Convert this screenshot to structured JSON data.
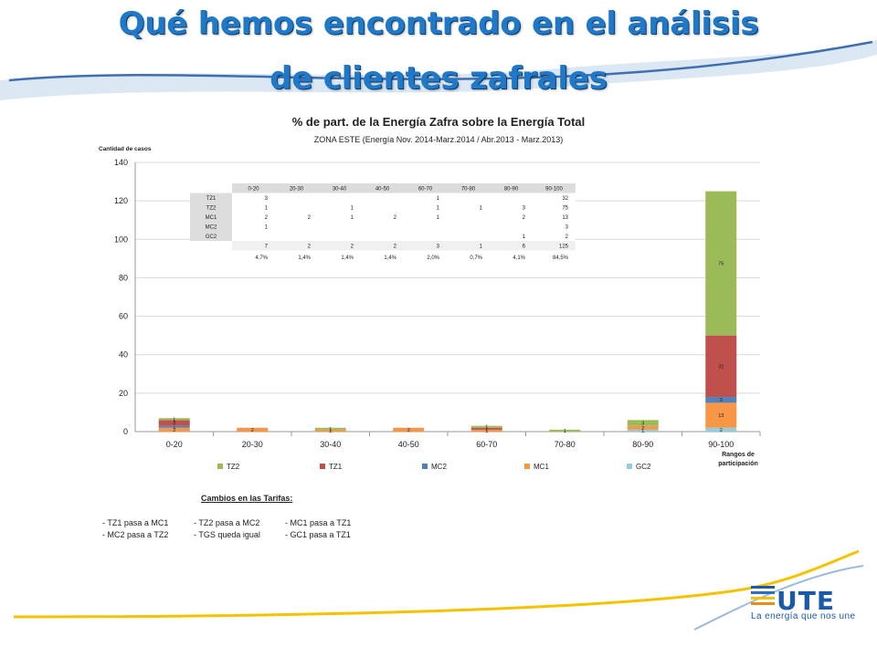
{
  "slide": {
    "title_line1": "Qué hemos encontrado en el análisis",
    "title_line2": "de clientes zafrales"
  },
  "colors": {
    "title_blue": "#1f78c8",
    "TZ2": "#9bbb59",
    "TZ1": "#c0504d",
    "MC2": "#4f81bd",
    "MC1": "#f79646",
    "GC2": "#93cddd"
  },
  "chart_data": {
    "type": "bar",
    "stacked": true,
    "title": "% de part. de la Energía Zafra sobre la Energía Total",
    "subtitle": "ZONA ESTE (Energía Nov. 2014-Marz.2014  / Abr.2013 - Marz.2013)",
    "ylabel": "Cantidad de casos",
    "xlabel": "Rangos de participación",
    "ylim": [
      0,
      140
    ],
    "yticks": [
      0,
      20,
      40,
      60,
      80,
      100,
      120,
      140
    ],
    "categories": [
      "0-20",
      "20-30",
      "30-40",
      "40-50",
      "60-70",
      "70-80",
      "80-90",
      "90-100"
    ],
    "series": [
      {
        "name": "GC2",
        "values": [
          0,
          0,
          0,
          0,
          0,
          0,
          1,
          2
        ]
      },
      {
        "name": "MC1",
        "values": [
          2,
          2,
          1,
          2,
          1,
          0,
          2,
          13
        ]
      },
      {
        "name": "MC2",
        "values": [
          1,
          0,
          0,
          0,
          0,
          0,
          0,
          3
        ]
      },
      {
        "name": "TZ1",
        "values": [
          3,
          0,
          0,
          0,
          1,
          0,
          0,
          32
        ]
      },
      {
        "name": "TZ2",
        "values": [
          1,
          0,
          1,
          0,
          1,
          1,
          3,
          75
        ]
      }
    ],
    "legend_order": [
      "TZ2",
      "TZ1",
      "MC2",
      "MC1",
      "GC2"
    ],
    "legend": "bottom",
    "grid": true,
    "table": {
      "header": [
        "0-20",
        "20-30",
        "30-40",
        "40-50",
        "60-70",
        "70-80",
        "80-90",
        "90-100"
      ],
      "rows": [
        {
          "label": "TZ1",
          "cells": [
            "3",
            "",
            "",
            "",
            "1",
            "",
            "",
            "32"
          ]
        },
        {
          "label": "TZ2",
          "cells": [
            "1",
            "",
            "1",
            "",
            "1",
            "1",
            "3",
            "75"
          ]
        },
        {
          "label": "MC1",
          "cells": [
            "2",
            "2",
            "1",
            "2",
            "1",
            "",
            "2",
            "13"
          ]
        },
        {
          "label": "MC2",
          "cells": [
            "1",
            "",
            "",
            "",
            "",
            "",
            "",
            "3"
          ]
        },
        {
          "label": "GC2",
          "cells": [
            "",
            "",
            "",
            "",
            "",
            "",
            "1",
            "2"
          ]
        }
      ],
      "totals": [
        "7",
        "2",
        "2",
        "2",
        "3",
        "1",
        "6",
        "125"
      ],
      "percents": [
        "4,7%",
        "1,4%",
        "1,4%",
        "1,4%",
        "2,0%",
        "0,7%",
        "4,1%",
        "84,5%"
      ]
    }
  },
  "changes": {
    "title": "Cambios en las Tarifas:",
    "rows": [
      [
        "- TZ1 pasa a MC1",
        "- TZ2 pasa a MC2",
        "- MC1 pasa a TZ1"
      ],
      [
        "- MC2 pasa a TZ2",
        "- TGS queda igual",
        "- GC1 pasa a TZ1"
      ]
    ]
  },
  "brand": {
    "logo": "UTE",
    "slogan": "La energía que nos une"
  }
}
